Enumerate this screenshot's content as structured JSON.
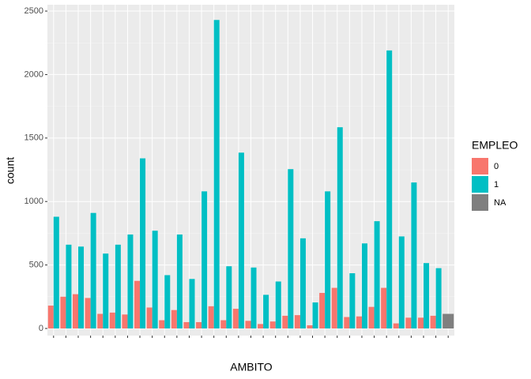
{
  "chart_data": {
    "type": "bar",
    "x_label": "AMBITO",
    "y_label": "count",
    "legend_title": "EMPLEO",
    "categories": [
      null,
      null,
      null,
      null,
      null,
      null,
      null,
      null,
      null,
      null,
      null,
      null,
      null,
      null,
      null,
      null,
      null,
      null,
      null,
      null,
      null,
      null,
      null,
      null,
      null,
      null,
      null,
      null,
      null,
      null,
      null,
      null,
      null
    ],
    "series": [
      {
        "name": "0",
        "color": "#f8766d",
        "values": [
          180,
          250,
          270,
          240,
          115,
          125,
          110,
          375,
          165,
          65,
          145,
          50,
          50,
          175,
          65,
          155,
          60,
          35,
          55,
          100,
          105,
          25,
          280,
          320,
          90,
          95,
          170,
          320,
          40,
          85,
          85,
          100,
          null
        ]
      },
      {
        "name": "1",
        "color": "#00bfc4",
        "values": [
          880,
          660,
          645,
          910,
          590,
          660,
          740,
          1340,
          770,
          420,
          740,
          390,
          1080,
          2430,
          490,
          1385,
          480,
          265,
          370,
          1255,
          710,
          205,
          1080,
          1585,
          435,
          670,
          845,
          2190,
          725,
          1150,
          515,
          475,
          null
        ]
      },
      {
        "name": "NA",
        "color": "#7f7f7f",
        "values": [
          null,
          null,
          null,
          null,
          null,
          null,
          null,
          null,
          null,
          null,
          null,
          null,
          null,
          null,
          null,
          null,
          null,
          null,
          null,
          null,
          null,
          null,
          null,
          null,
          null,
          null,
          null,
          null,
          null,
          null,
          null,
          null,
          115
        ]
      }
    ],
    "ylim": [
      -56,
      2550
    ],
    "yticks": [
      0,
      500,
      1000,
      1500,
      2000,
      2500
    ],
    "grid": true
  }
}
